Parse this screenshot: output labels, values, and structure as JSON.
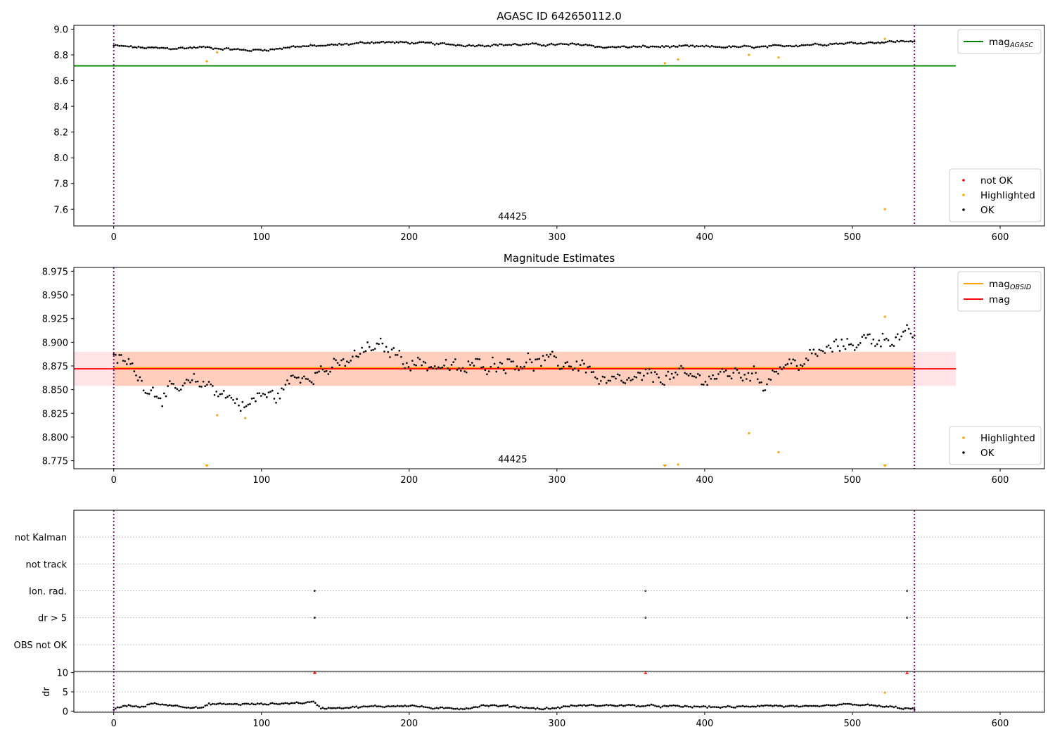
{
  "figure": {
    "colors": {
      "ok": "#000000",
      "highlighted": "#ffa500",
      "not_ok": "#ff0000",
      "agasc_line": "#008000",
      "obsid_line": "#ffa500",
      "mag_line": "#ff0000",
      "band_red": "#ffc0c8",
      "band_orange": "#ffb080",
      "vline": "#800080"
    }
  },
  "chart_data": [
    {
      "type": "scatter",
      "title": "AGASC ID 642650112.0",
      "annotation": "44425",
      "annotation_x": 270,
      "xlim": [
        -27,
        630
      ],
      "ylim": [
        7.47,
        9.03
      ],
      "xticks": [
        "0",
        "100",
        "200",
        "300",
        "400",
        "500",
        "600"
      ],
      "yticks": [
        "7.6",
        "7.8",
        "8.0",
        "8.2",
        "8.4",
        "8.6",
        "8.8",
        "9.0"
      ],
      "vlines": [
        0,
        542
      ],
      "hline": {
        "name": "mag",
        "sub": "AGASC",
        "y": 8.715,
        "x": [
          -27,
          570
        ]
      },
      "legend_lines": [
        {
          "name": "mag",
          "sub": "AGASC",
          "color": "#008000"
        }
      ],
      "legend_points": [
        {
          "name": "not OK",
          "color": "#ff0000"
        },
        {
          "name": "Highlighted",
          "color": "#ffa500"
        },
        {
          "name": "OK",
          "color": "#000000"
        }
      ],
      "ok_series": {
        "x_start": 0,
        "x_end": 542,
        "n": 420,
        "profile": [
          [
            0,
            8.872
          ],
          [
            20,
            8.855
          ],
          [
            40,
            8.85
          ],
          [
            60,
            8.86
          ],
          [
            80,
            8.845
          ],
          [
            90,
            8.835
          ],
          [
            110,
            8.845
          ],
          [
            120,
            8.865
          ],
          [
            140,
            8.87
          ],
          [
            160,
            8.885
          ],
          [
            175,
            8.9
          ],
          [
            200,
            8.895
          ],
          [
            240,
            8.875
          ],
          [
            270,
            8.88
          ],
          [
            320,
            8.88
          ],
          [
            330,
            8.86
          ],
          [
            380,
            8.865
          ],
          [
            440,
            8.86
          ],
          [
            460,
            8.875
          ],
          [
            480,
            8.885
          ],
          [
            520,
            8.9
          ],
          [
            542,
            8.91
          ]
        ]
      },
      "highlighted": [
        {
          "x": 63,
          "y": 8.75
        },
        {
          "x": 70,
          "y": 8.82
        },
        {
          "x": 373,
          "y": 8.735
        },
        {
          "x": 382,
          "y": 8.765
        },
        {
          "x": 430,
          "y": 8.8
        },
        {
          "x": 450,
          "y": 8.78
        },
        {
          "x": 522,
          "y": 7.6
        },
        {
          "x": 522,
          "y": 8.925
        }
      ]
    },
    {
      "type": "scatter",
      "title": "Magnitude Estimates",
      "annotation": "44425",
      "annotation_x": 270,
      "xlim": [
        -27,
        630
      ],
      "ylim": [
        8.7665,
        8.979
      ],
      "xticks": [
        "0",
        "100",
        "200",
        "300",
        "400",
        "500",
        "600"
      ],
      "yticks": [
        "8.775",
        "8.800",
        "8.825",
        "8.850",
        "8.875",
        "8.900",
        "8.925",
        "8.950",
        "8.975"
      ],
      "vlines": [
        0,
        542
      ],
      "band_red": {
        "x": [
          -27,
          570
        ],
        "y": [
          8.854,
          8.89
        ]
      },
      "band_orange": {
        "x": [
          0,
          542
        ],
        "y": [
          8.854,
          8.89
        ]
      },
      "mag_line": {
        "name": "mag",
        "y": 8.872,
        "x": [
          -27,
          570
        ]
      },
      "obsid_line": {
        "name": "mag",
        "sub": "OBSID",
        "y": 8.873,
        "x": [
          0,
          542
        ]
      },
      "legend_lines": [
        {
          "name": "mag",
          "sub": "OBSID",
          "color": "#ffa500"
        },
        {
          "name": "mag",
          "sub": "",
          "color": "#ff0000"
        }
      ],
      "legend_points": [
        {
          "name": "Highlighted",
          "color": "#ffa500"
        },
        {
          "name": "OK",
          "color": "#000000"
        }
      ],
      "ok_series": {
        "x_start": 0,
        "x_end": 542,
        "n": 430,
        "profile": [
          [
            0,
            8.88
          ],
          [
            10,
            8.878
          ],
          [
            20,
            8.858
          ],
          [
            30,
            8.846
          ],
          [
            45,
            8.848
          ],
          [
            55,
            8.857
          ],
          [
            65,
            8.855
          ],
          [
            75,
            8.845
          ],
          [
            90,
            8.832
          ],
          [
            100,
            8.845
          ],
          [
            110,
            8.842
          ],
          [
            120,
            8.86
          ],
          [
            135,
            8.87
          ],
          [
            150,
            8.872
          ],
          [
            165,
            8.885
          ],
          [
            175,
            8.895
          ],
          [
            190,
            8.89
          ],
          [
            200,
            8.88
          ],
          [
            220,
            8.875
          ],
          [
            235,
            8.87
          ],
          [
            250,
            8.878
          ],
          [
            270,
            8.88
          ],
          [
            300,
            8.878
          ],
          [
            320,
            8.876
          ],
          [
            330,
            8.855
          ],
          [
            350,
            8.858
          ],
          [
            370,
            8.865
          ],
          [
            395,
            8.862
          ],
          [
            410,
            8.865
          ],
          [
            430,
            8.868
          ],
          [
            440,
            8.858
          ],
          [
            450,
            8.875
          ],
          [
            465,
            8.878
          ],
          [
            480,
            8.89
          ],
          [
            500,
            8.9
          ],
          [
            520,
            8.905
          ],
          [
            542,
            8.905
          ]
        ]
      },
      "highlighted": [
        {
          "x": 70,
          "y": 8.823
        },
        {
          "x": 89,
          "y": 8.82
        },
        {
          "x": 430,
          "y": 8.804
        },
        {
          "x": 450,
          "y": 8.784
        },
        {
          "x": 382,
          "y": 8.771
        },
        {
          "x": 522,
          "y": 8.927
        }
      ],
      "offscale_markers": [
        {
          "x": 63
        },
        {
          "x": 373
        },
        {
          "x": 522
        }
      ]
    },
    {
      "type": "scatter",
      "title": "",
      "xlim": [
        -27,
        630
      ],
      "categories": [
        "not Kalman",
        "not track",
        "Ion. rad.",
        "dr > 5",
        "OBS not OK"
      ],
      "flags": [
        {
          "category": "Ion. rad.",
          "x": [
            136,
            360,
            537
          ]
        },
        {
          "category": "dr > 5",
          "x": [
            136,
            360,
            537
          ]
        }
      ],
      "vlines": [
        0,
        542
      ]
    },
    {
      "type": "scatter",
      "title": "",
      "ylabel": "dr",
      "xlim": [
        -27,
        630
      ],
      "ylim": [
        -0.3,
        10.3
      ],
      "xticks": [
        "0",
        "100",
        "200",
        "300",
        "400",
        "500",
        "600"
      ],
      "yticks": [
        "0",
        "5",
        "10"
      ],
      "vlines": [
        0,
        542
      ],
      "clipped_markers": [
        {
          "x": 136
        },
        {
          "x": 360
        },
        {
          "x": 537
        }
      ],
      "highlighted": [
        {
          "x": 522,
          "y": 4.8
        }
      ],
      "ok_series": {
        "x_start": 0,
        "x_end": 542,
        "n": 430,
        "profile": [
          [
            0,
            0.5
          ],
          [
            10,
            1.5
          ],
          [
            20,
            1.0
          ],
          [
            25,
            2.0
          ],
          [
            40,
            1.5
          ],
          [
            60,
            0.8
          ],
          [
            65,
            1.8
          ],
          [
            100,
            1.8
          ],
          [
            136,
            2.3
          ],
          [
            140,
            0.8
          ],
          [
            180,
            1.2
          ],
          [
            200,
            1.5
          ],
          [
            220,
            0.6
          ],
          [
            240,
            0.8
          ],
          [
            250,
            1.5
          ],
          [
            270,
            1.2
          ],
          [
            290,
            0.6
          ],
          [
            300,
            0.8
          ],
          [
            310,
            1.4
          ],
          [
            340,
            1.5
          ],
          [
            380,
            1.2
          ],
          [
            420,
            1.0
          ],
          [
            440,
            1.5
          ],
          [
            470,
            1.0
          ],
          [
            500,
            1.8
          ],
          [
            530,
            0.9
          ],
          [
            542,
            0.5
          ]
        ]
      }
    }
  ]
}
